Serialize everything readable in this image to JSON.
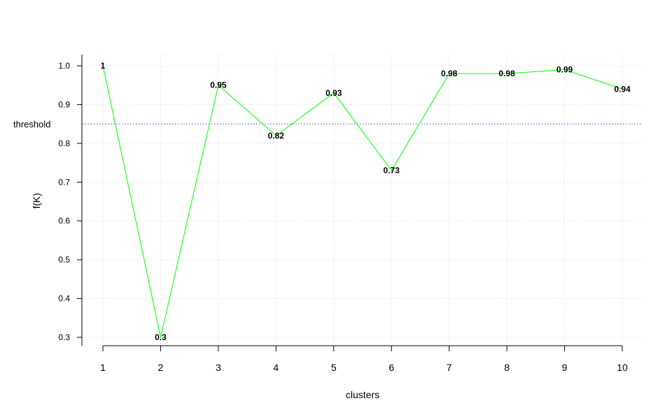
{
  "chart_data": {
    "type": "line",
    "x": [
      1,
      2,
      3,
      4,
      5,
      6,
      7,
      8,
      9,
      10
    ],
    "values": [
      1.0,
      0.3,
      0.95,
      0.82,
      0.93,
      0.73,
      0.98,
      0.98,
      0.99,
      0.94
    ],
    "data_labels": [
      "1",
      "0.3",
      "0.95",
      "0.82",
      "0.93",
      "0.73",
      "0.98",
      "0.98",
      "0.99",
      "0.94"
    ],
    "xlabel": "clusters",
    "ylabel": "f(K)",
    "xticks": [
      "1",
      "2",
      "3",
      "4",
      "5",
      "6",
      "7",
      "8",
      "9",
      "10"
    ],
    "yticks": [
      0.3,
      0.4,
      0.5,
      0.6,
      0.7,
      0.8,
      0.9,
      1.0
    ],
    "ytick_labels": [
      "0.3",
      "0.4",
      "0.5",
      "0.6",
      "0.7",
      "0.8",
      "0.9",
      "1.0"
    ],
    "xlim": [
      1,
      10
    ],
    "ylim": [
      0.3,
      1.0
    ],
    "threshold": {
      "value": 0.85,
      "label": "threshold",
      "color": "#6a6ae8"
    },
    "line_color": "#00ff00",
    "grid": true,
    "grid_color": "#d3d3d3"
  }
}
